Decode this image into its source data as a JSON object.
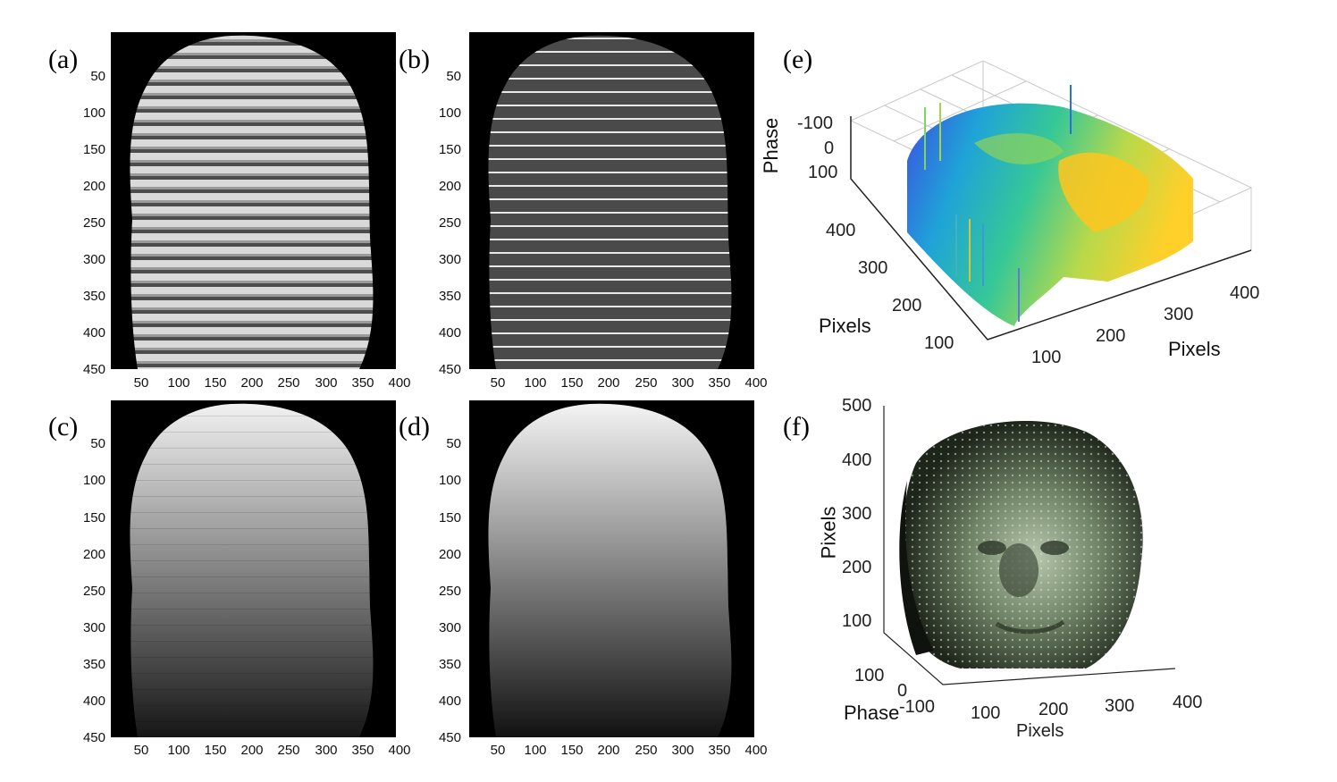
{
  "panels": {
    "a": {
      "label": "(a)",
      "yticks": [
        "50",
        "100",
        "150",
        "200",
        "250",
        "300",
        "350",
        "400",
        "450"
      ],
      "xticks": [
        "50",
        "100",
        "150",
        "200",
        "250",
        "300",
        "350",
        "400"
      ]
    },
    "b": {
      "label": "(b)",
      "yticks": [
        "50",
        "100",
        "150",
        "200",
        "250",
        "300",
        "350",
        "400",
        "450"
      ],
      "xticks": [
        "50",
        "100",
        "150",
        "200",
        "250",
        "300",
        "350",
        "400"
      ]
    },
    "c": {
      "label": "(c)",
      "yticks": [
        "50",
        "100",
        "150",
        "200",
        "250",
        "300",
        "350",
        "400",
        "450"
      ],
      "xticks": [
        "50",
        "100",
        "150",
        "200",
        "250",
        "300",
        "350",
        "400"
      ]
    },
    "d": {
      "label": "(d)",
      "yticks": [
        "50",
        "100",
        "150",
        "200",
        "250",
        "300",
        "350",
        "400",
        "450"
      ],
      "xticks": [
        "50",
        "100",
        "150",
        "200",
        "250",
        "300",
        "350",
        "400"
      ]
    },
    "e": {
      "label": "(e)",
      "zlabel": "Phase",
      "zticks": [
        "-100",
        "0",
        "100"
      ],
      "ylabel": "Pixels",
      "yticks": [
        "400",
        "300",
        "200",
        "100"
      ],
      "xlabel": "Pixels",
      "xticks": [
        "100",
        "200",
        "300",
        "400"
      ]
    },
    "f": {
      "label": "(f)",
      "zlabel": "Pixels",
      "zticks": [
        "500",
        "400",
        "300",
        "200",
        "100"
      ],
      "ylabel": "Phase",
      "yticks": [
        "100",
        "0",
        "-100"
      ],
      "xlabel": "Pixels",
      "xticks": [
        "100",
        "200",
        "300",
        "400"
      ]
    }
  },
  "colors": {
    "background": "#000000",
    "fringe_light": "#e6e6e6",
    "fringe_dark": "#4a4a4a",
    "surface_low": "#3b3bdc",
    "surface_mid": "#28c08a",
    "surface_high": "#ffd21e",
    "face_tint": "#8fa38c"
  }
}
